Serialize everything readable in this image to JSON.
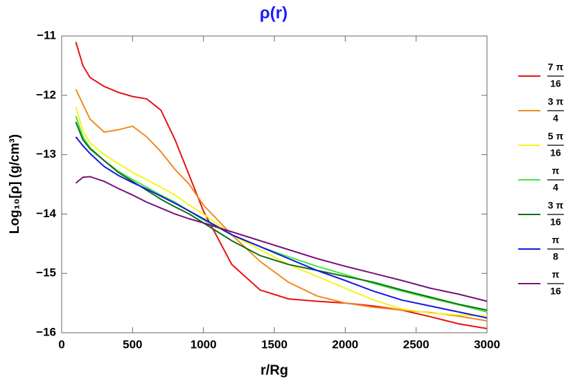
{
  "chart_data": {
    "type": "line",
    "title": "ρ(r)",
    "x_label": "r/Rg",
    "y_label": "Log₁₀[ρ] (g/cm³)",
    "x": [
      100,
      150,
      200,
      300,
      400,
      500,
      600,
      700,
      800,
      900,
      1000,
      1200,
      1400,
      1600,
      1800,
      2000,
      2200,
      2400,
      2600,
      2800,
      3000
    ],
    "series": [
      {
        "name": {
          "numerator": "7 π",
          "denominator": "16"
        },
        "color": "#e81010",
        "values": [
          -11.1,
          -11.5,
          -11.7,
          -11.85,
          -11.95,
          -12.02,
          -12.06,
          -12.25,
          -12.75,
          -13.35,
          -13.95,
          -14.85,
          -15.28,
          -15.43,
          -15.47,
          -15.5,
          -15.55,
          -15.62,
          -15.73,
          -15.85,
          -15.93
        ]
      },
      {
        "name": {
          "numerator": "3 π",
          "denominator": "4"
        },
        "color": "#f08a1c",
        "values": [
          -11.9,
          -12.15,
          -12.4,
          -12.62,
          -12.58,
          -12.52,
          -12.7,
          -12.95,
          -13.25,
          -13.5,
          -13.85,
          -14.35,
          -14.8,
          -15.15,
          -15.38,
          -15.5,
          -15.57,
          -15.62,
          -15.66,
          -15.72,
          -15.8
        ]
      },
      {
        "name": {
          "numerator": "5 π",
          "denominator": "16"
        },
        "color": "#f5f51a",
        "values": [
          -12.2,
          -12.6,
          -12.8,
          -13.0,
          -13.15,
          -13.3,
          -13.42,
          -13.55,
          -13.68,
          -13.85,
          -14.0,
          -14.35,
          -14.6,
          -14.85,
          -15.05,
          -15.25,
          -15.45,
          -15.6,
          -15.67,
          -15.7,
          -15.72
        ]
      },
      {
        "name": {
          "numerator": "π",
          "denominator": "4"
        },
        "color": "#3ee83e",
        "values": [
          -12.35,
          -12.7,
          -12.88,
          -13.1,
          -13.28,
          -13.42,
          -13.55,
          -13.68,
          -13.8,
          -13.95,
          -14.1,
          -14.35,
          -14.55,
          -14.72,
          -14.88,
          -15.02,
          -15.17,
          -15.3,
          -15.42,
          -15.53,
          -15.65
        ]
      },
      {
        "name": {
          "numerator": "3 π",
          "denominator": "16"
        },
        "color": "#0f6e0f",
        "values": [
          -12.45,
          -12.75,
          -12.9,
          -13.1,
          -13.3,
          -13.45,
          -13.6,
          -13.75,
          -13.88,
          -14.0,
          -14.15,
          -14.45,
          -14.7,
          -14.85,
          -14.95,
          -15.05,
          -15.15,
          -15.28,
          -15.4,
          -15.52,
          -15.62
        ]
      },
      {
        "name": {
          "numerator": "π",
          "denominator": "8"
        },
        "color": "#1414e6",
        "values": [
          -12.7,
          -12.85,
          -12.98,
          -13.2,
          -13.35,
          -13.47,
          -13.58,
          -13.7,
          -13.82,
          -13.95,
          -14.08,
          -14.35,
          -14.55,
          -14.75,
          -14.95,
          -15.12,
          -15.3,
          -15.45,
          -15.55,
          -15.65,
          -15.75
        ]
      },
      {
        "name": {
          "numerator": "π",
          "denominator": "16"
        },
        "color": "#7a1078",
        "values": [
          -13.48,
          -13.38,
          -13.37,
          -13.45,
          -13.57,
          -13.68,
          -13.8,
          -13.9,
          -14.0,
          -14.08,
          -14.15,
          -14.3,
          -14.45,
          -14.6,
          -14.75,
          -14.88,
          -15.0,
          -15.12,
          -15.25,
          -15.35,
          -15.47
        ]
      }
    ],
    "xlim": [
      0,
      3000
    ],
    "xticks": [
      0,
      500,
      1000,
      1500,
      2000,
      2500,
      3000
    ],
    "ylim": [
      -16,
      -11
    ],
    "yticks": [
      {
        "value": -16,
        "label": "−16"
      },
      {
        "value": -15,
        "label": "−15"
      },
      {
        "value": -14,
        "label": "−14"
      },
      {
        "value": -13,
        "label": "−13"
      },
      {
        "value": -12,
        "label": "−12"
      },
      {
        "value": -11,
        "label": "−11"
      }
    ],
    "grid": false,
    "legend": "right"
  }
}
